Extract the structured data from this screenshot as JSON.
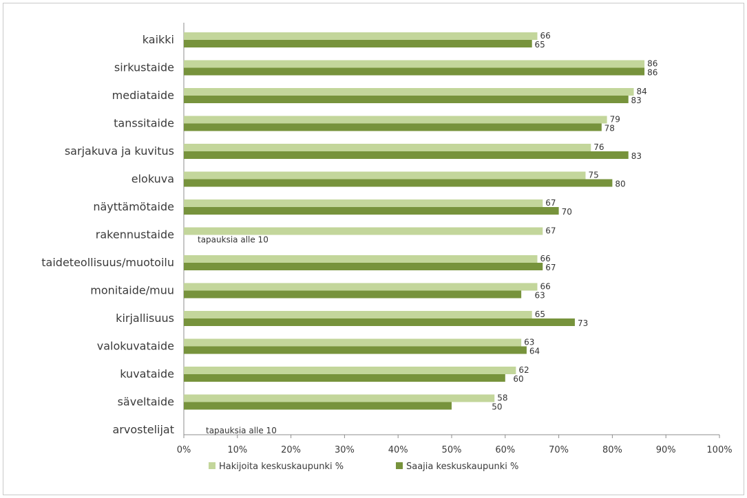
{
  "chart_data": {
    "type": "bar",
    "orientation": "horizontal",
    "categories": [
      "kaikki",
      "sirkustaide",
      "mediataide",
      "tanssitaide",
      "sarjakuva ja kuvitus",
      "elokuva",
      "näyttämötaide",
      "rakennustaide",
      "taideteollisuus/muotoilu",
      "monitaide/muu",
      "kirjallisuus",
      "valokuvataide",
      "kuvataide",
      "säveltaide",
      "arvostelijat"
    ],
    "series": [
      {
        "name": "Hakijoita keskuskaupunki %",
        "color": "#c3d69b",
        "values": [
          66,
          86,
          84,
          79,
          76,
          75,
          67,
          67,
          66,
          66,
          65,
          63,
          62,
          58,
          null
        ]
      },
      {
        "name": "Saajia keskuskaupunki %",
        "color": "#77933c",
        "values": [
          65,
          86,
          83,
          78,
          83,
          80,
          70,
          null,
          67,
          63,
          73,
          64,
          60,
          50,
          null
        ]
      }
    ],
    "annotations": [
      {
        "category": "rakennustaide",
        "text": "tapauksia alle 10"
      },
      {
        "category": "arvostelijat",
        "text": "tapauksia alle 10"
      }
    ],
    "x_ticks": [
      "0%",
      "10%",
      "20%",
      "30%",
      "40%",
      "50%",
      "60%",
      "70%",
      "80%",
      "90%",
      "100%"
    ],
    "xlim": [
      0,
      100
    ],
    "title": "",
    "xlabel": "",
    "ylabel": "",
    "grid": false,
    "legend_position": "bottom"
  }
}
